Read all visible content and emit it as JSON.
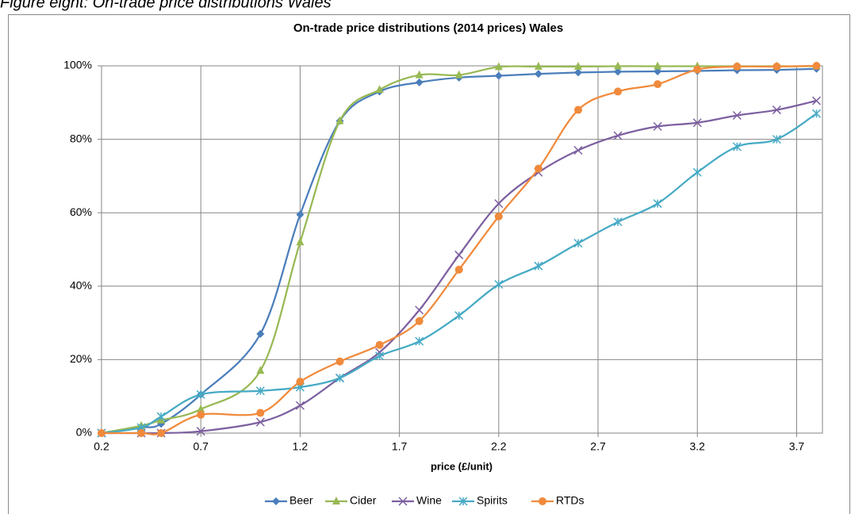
{
  "figure_caption": "Figure eight: On-trade price distributions Wales",
  "chart_data": {
    "type": "line",
    "title": "On-trade price distributions (2014 prices) Wales",
    "xlabel": "price (£/unit)",
    "x": [
      0.2,
      0.4,
      0.5,
      0.7,
      1.0,
      1.2,
      1.4,
      1.6,
      1.8,
      2.0,
      2.2,
      2.4,
      2.6,
      2.8,
      3.0,
      3.2,
      3.4,
      3.6,
      3.8
    ],
    "series": [
      {
        "name": "Beer",
        "color": "#4a7ebb",
        "marker": "diamond",
        "values": [
          0,
          1.5,
          2.5,
          10.5,
          27,
          59.5,
          85,
          93,
          95.5,
          96.8,
          97.3,
          97.8,
          98.2,
          98.4,
          98.5,
          98.6,
          98.8,
          98.9,
          99.2
        ]
      },
      {
        "name": "Cider",
        "color": "#98b954",
        "marker": "triangle",
        "values": [
          0,
          2,
          3.5,
          6.5,
          17,
          52,
          85,
          93.5,
          97.5,
          97.5,
          99.7,
          99.8,
          99.8,
          99.9,
          99.9,
          99.9,
          99.9,
          99.9,
          99.9
        ]
      },
      {
        "name": "Wine",
        "color": "#7d60a0",
        "marker": "x",
        "values": [
          0,
          0,
          0,
          0.5,
          3,
          7.5,
          15,
          22,
          33.5,
          48.5,
          62.5,
          71,
          77,
          81,
          83.5,
          84.5,
          86.5,
          88,
          90.5
        ]
      },
      {
        "name": "Spirits",
        "color": "#46aac5",
        "marker": "star",
        "values": [
          0,
          1.5,
          4.5,
          10.5,
          11.5,
          12.5,
          15,
          21,
          25,
          32,
          40.5,
          45.5,
          51.7,
          57.5,
          62.5,
          71,
          78,
          80,
          87
        ]
      },
      {
        "name": "RTDs",
        "color": "#f08a3c",
        "marker": "circle",
        "values": [
          0,
          0,
          0,
          5,
          5.5,
          14,
          19.5,
          24,
          30.5,
          44.5,
          59,
          72,
          88,
          93,
          95,
          99,
          99.8,
          99.8,
          100
        ]
      }
    ],
    "xlim": [
      0.2,
      3.83
    ],
    "xticks": [
      0.2,
      0.7,
      1.2,
      1.7,
      2.2,
      2.7,
      3.2,
      3.7
    ],
    "ylim": [
      0,
      100
    ],
    "yticks": [
      {
        "value": 0,
        "label": "0%"
      },
      {
        "value": 20,
        "label": "20%"
      },
      {
        "value": 40,
        "label": "40%"
      },
      {
        "value": 60,
        "label": "60%"
      },
      {
        "value": 80,
        "label": "80%"
      },
      {
        "value": 100,
        "label": "100%"
      }
    ],
    "grid": true,
    "smooth": true,
    "legend": "bottom"
  }
}
